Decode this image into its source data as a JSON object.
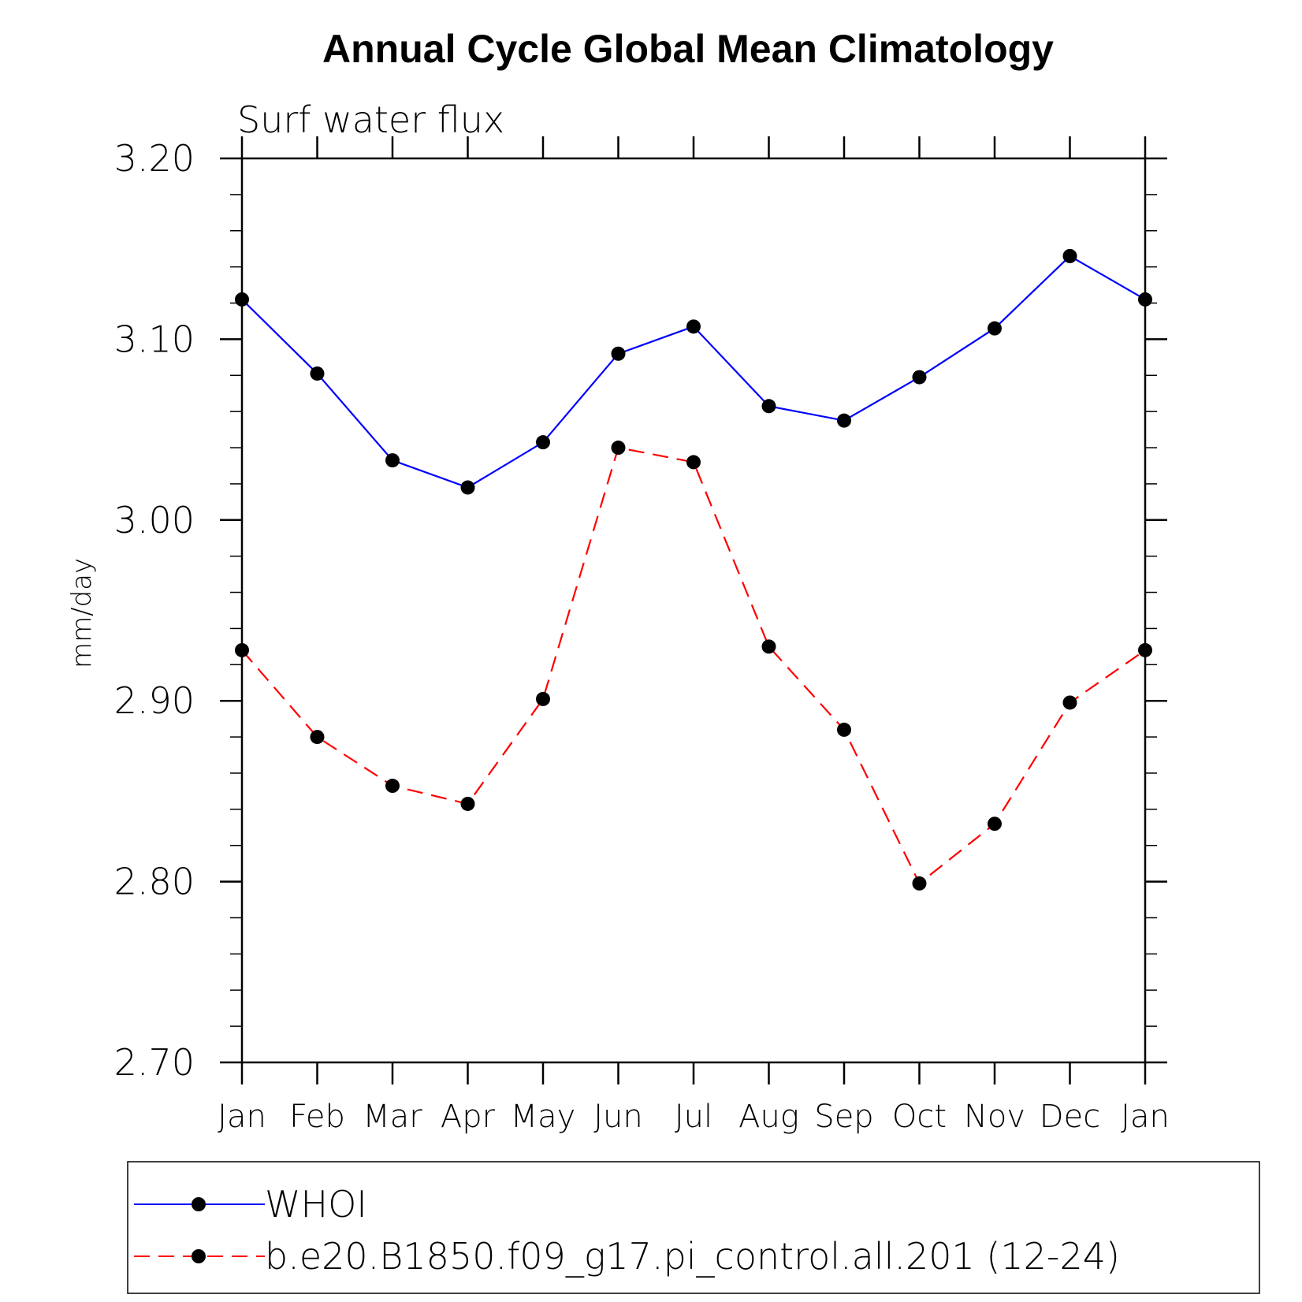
{
  "chart_data": {
    "type": "line",
    "title": "Annual Cycle Global Mean Climatology",
    "subtitle": "Surf water flux",
    "xlabel": "",
    "ylabel": "mm/day",
    "ylim": [
      2.7,
      3.2
    ],
    "yticks": [
      "2.70",
      "2.80",
      "2.90",
      "3.00",
      "3.10",
      "3.20"
    ],
    "categories": [
      "Jan",
      "Feb",
      "Mar",
      "Apr",
      "May",
      "Jun",
      "Jul",
      "Aug",
      "Sep",
      "Oct",
      "Nov",
      "Dec",
      "Jan"
    ],
    "grid": false,
    "legend_position": "bottom",
    "series": [
      {
        "name": "WHOI",
        "color": "#0000ff",
        "dash": "solid",
        "values": [
          3.122,
          3.081,
          3.033,
          3.018,
          3.043,
          3.092,
          3.107,
          3.063,
          3.055,
          3.079,
          3.106,
          3.146,
          3.122
        ]
      },
      {
        "name": "b.e20.B1850.f09_g17.pi_control.all.201 (12-24)",
        "color": "#ff0000",
        "dash": "dashed",
        "values": [
          2.928,
          2.88,
          2.853,
          2.843,
          2.901,
          3.04,
          3.032,
          2.93,
          2.884,
          2.799,
          2.832,
          2.899,
          2.928
        ]
      }
    ]
  }
}
